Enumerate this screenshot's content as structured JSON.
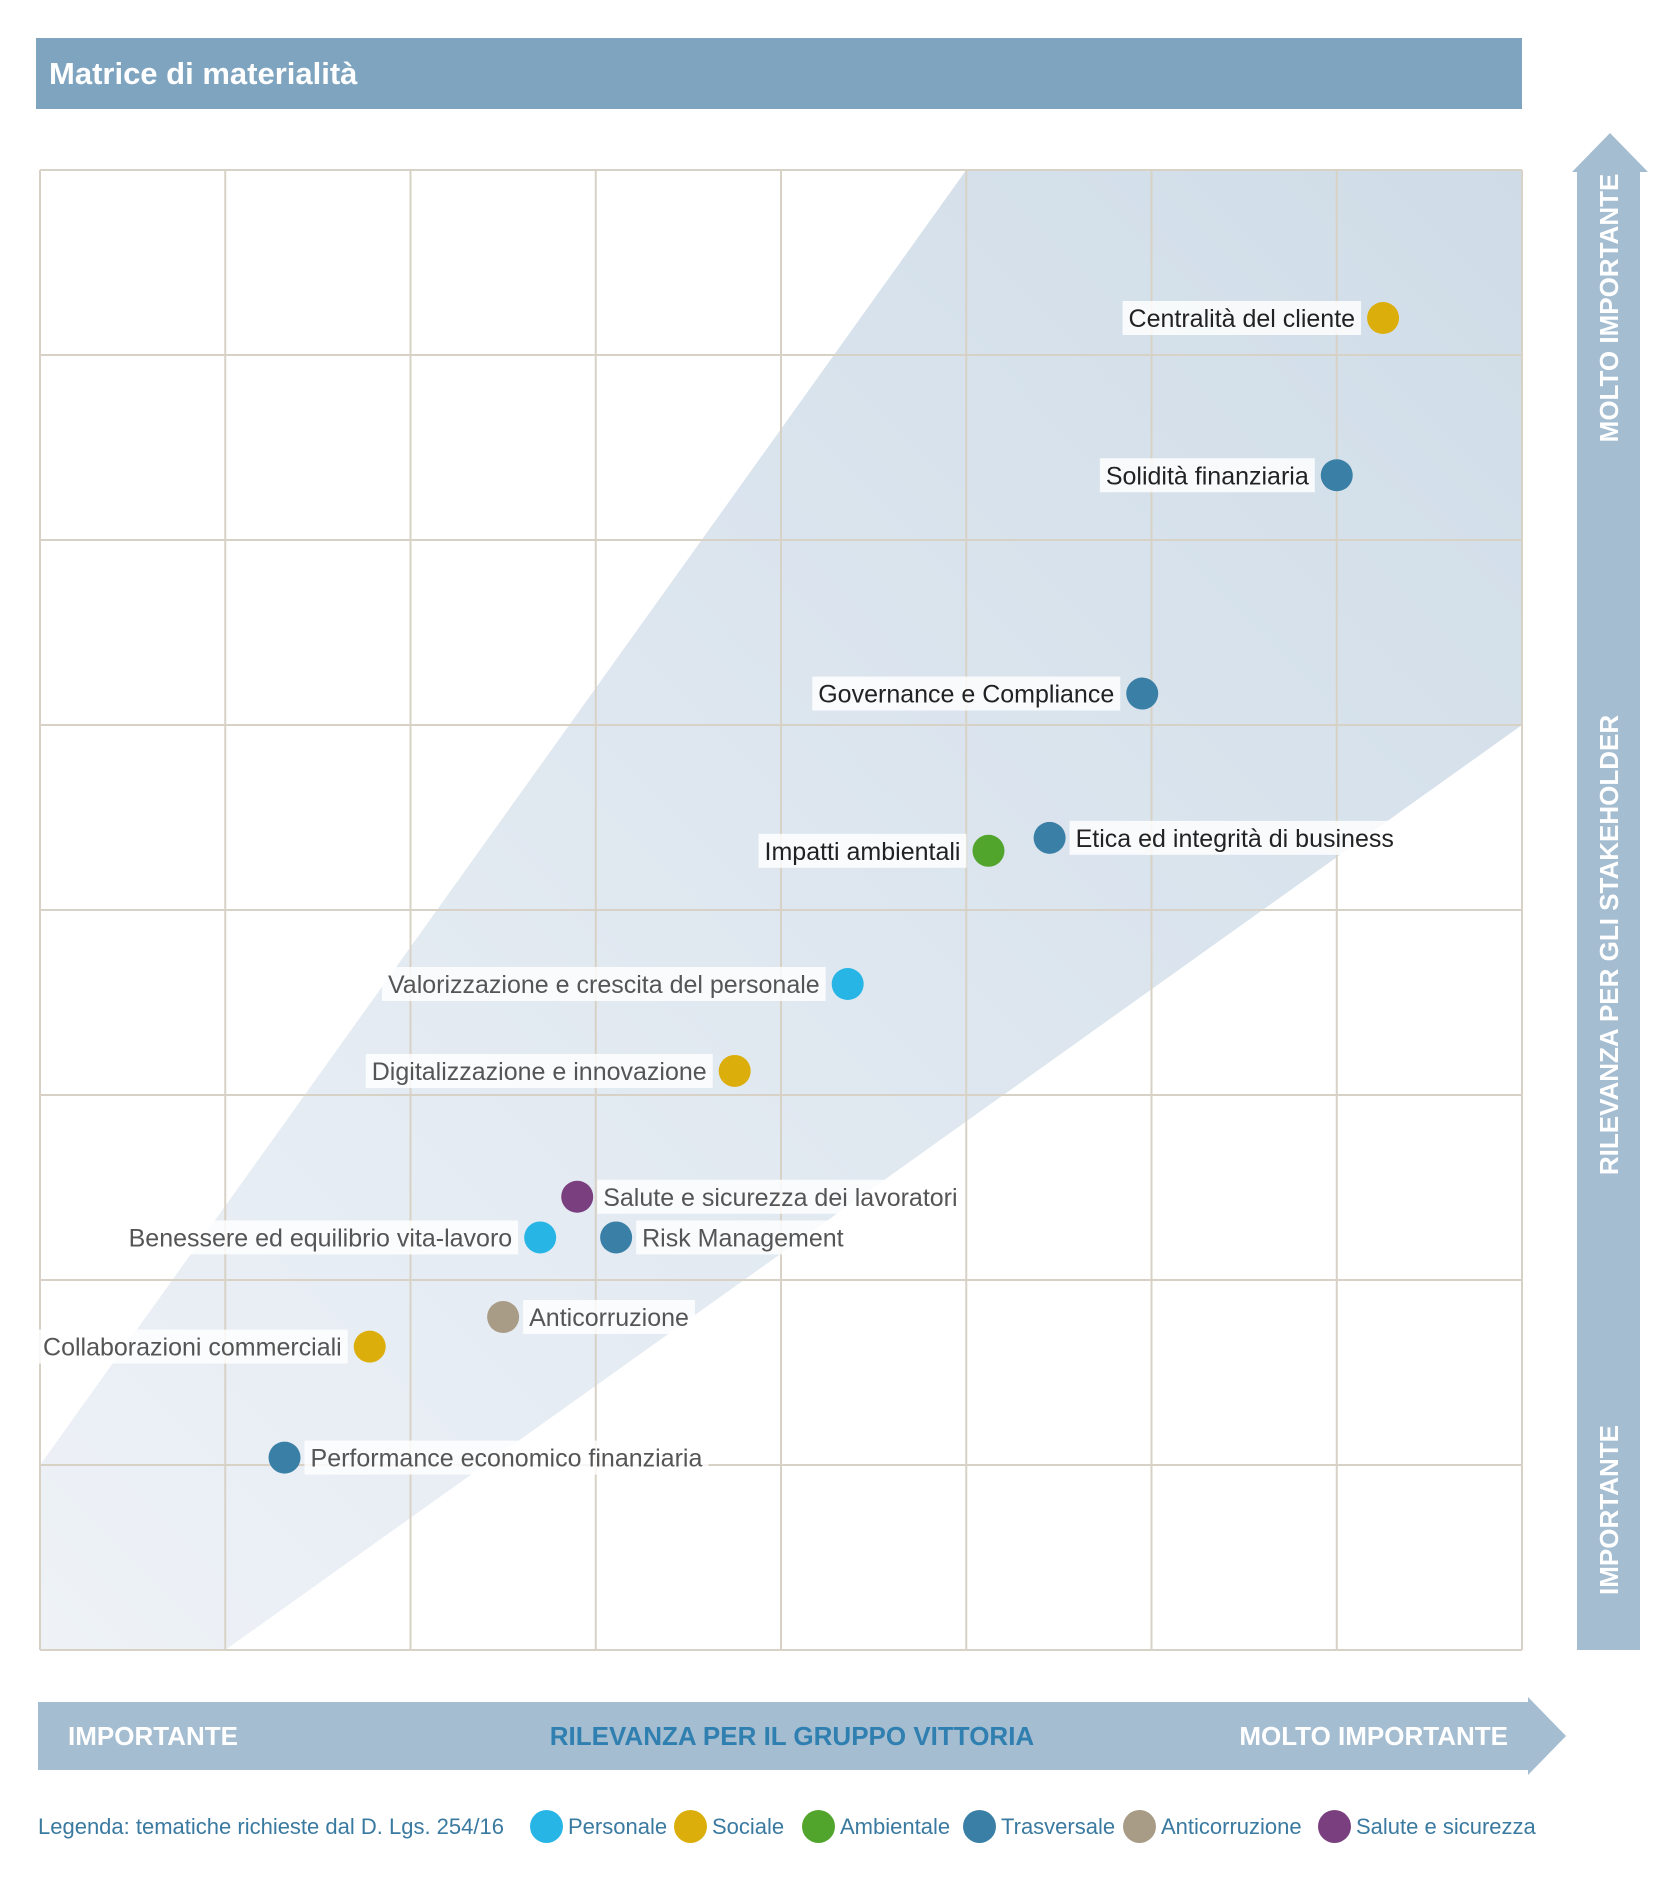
{
  "title": "Matrice di materialità",
  "colors": {
    "header": "#7fa4bf",
    "axis_bar": "#a5bdd1",
    "band": "#cfdce7",
    "grid": "#d8d2c6",
    "Personale": "#27b5e6",
    "Sociale": "#dcae0c",
    "Ambientale": "#52a52c",
    "Trasversale": "#3a7fa6",
    "Anticorruzione": "#a89c86",
    "Salute e sicurezza": "#7a3f7e"
  },
  "chart_data": {
    "type": "scatter",
    "title": "Matrice di materialità",
    "xlabel": "RILEVANZA PER IL GRUPPO VITTORIA",
    "ylabel": "RILEVANZA PER GLI STAKEHOLDER",
    "x_axis_ends": [
      "IMPORTANTE",
      "MOLTO IMPORTANTE"
    ],
    "y_axis_ends": [
      "IMPORTANTE",
      "MOLTO IMPORTANTE"
    ],
    "xlim": [
      0,
      8
    ],
    "ylim": [
      0,
      8
    ],
    "grid": true,
    "band": [
      [
        0,
        1
      ],
      [
        0,
        0
      ],
      [
        1,
        0
      ],
      [
        8,
        5
      ],
      [
        8,
        8
      ],
      [
        5,
        8
      ]
    ],
    "categories": [
      "Personale",
      "Sociale",
      "Ambientale",
      "Trasversale",
      "Anticorruzione",
      "Salute e sicurezza"
    ],
    "points": [
      {
        "label": "Centralità del cliente",
        "x": 7.25,
        "y": 7.2,
        "category": "Sociale",
        "label_side": "left"
      },
      {
        "label": "Solidità finanziaria",
        "x": 7.0,
        "y": 6.35,
        "category": "Trasversale",
        "label_side": "left"
      },
      {
        "label": "Governance e Compliance",
        "x": 5.95,
        "y": 5.17,
        "category": "Trasversale",
        "label_side": "left"
      },
      {
        "label": "Etica ed integrità di business",
        "x": 5.45,
        "y": 4.39,
        "category": "Trasversale",
        "label_side": "right"
      },
      {
        "label": "Impatti ambientali",
        "x": 5.12,
        "y": 4.32,
        "category": "Ambientale",
        "label_side": "left"
      },
      {
        "label": "Valorizzazione e crescita del personale",
        "x": 4.36,
        "y": 3.6,
        "category": "Personale",
        "label_side": "left"
      },
      {
        "label": "Digitalizzazione e innovazione",
        "x": 3.75,
        "y": 3.13,
        "category": "Sociale",
        "label_side": "left"
      },
      {
        "label": "Salute e sicurezza dei lavoratori",
        "x": 2.9,
        "y": 2.45,
        "category": "Salute e sicurezza",
        "label_side": "right"
      },
      {
        "label": "Benessere ed equilibrio vita-lavoro",
        "x": 2.7,
        "y": 2.23,
        "category": "Personale",
        "label_side": "left"
      },
      {
        "label": "Risk Management",
        "x": 3.11,
        "y": 2.23,
        "category": "Trasversale",
        "label_side": "right"
      },
      {
        "label": "Anticorruzione",
        "x": 2.5,
        "y": 1.8,
        "category": "Anticorruzione",
        "label_side": "right"
      },
      {
        "label": "Collaborazioni commerciali",
        "x": 1.78,
        "y": 1.64,
        "category": "Sociale",
        "label_side": "left"
      },
      {
        "label": "Performance economico finanziaria",
        "x": 1.32,
        "y": 1.04,
        "category": "Trasversale",
        "label_side": "right"
      }
    ]
  },
  "legend": {
    "title": "Legenda: tematiche richieste dal D. Lgs. 254/16",
    "items": [
      "Personale",
      "Sociale",
      "Ambientale",
      "Trasversale",
      "Anticorruzione",
      "Salute e sicurezza"
    ]
  }
}
